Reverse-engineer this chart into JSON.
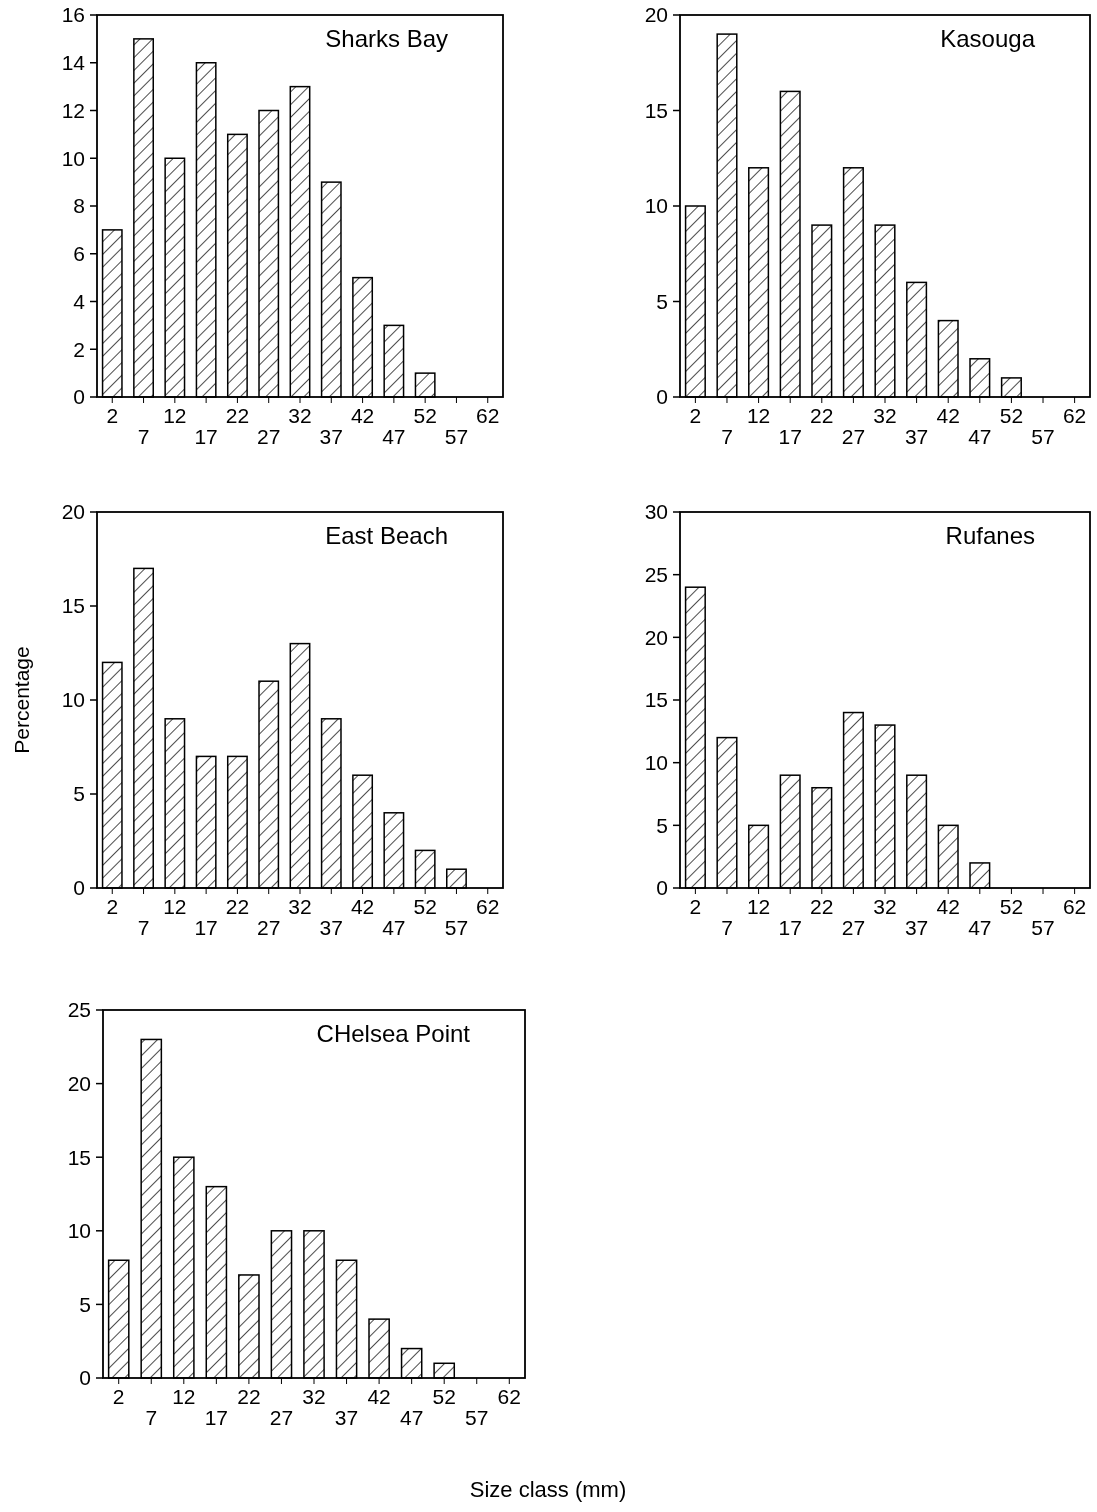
{
  "chart_data": [
    {
      "type": "bar",
      "title": "Sharks Bay",
      "categories": [
        "2",
        "7",
        "12",
        "17",
        "22",
        "27",
        "32",
        "37",
        "42",
        "47",
        "52",
        "57",
        "62"
      ],
      "values": [
        7,
        15,
        10,
        14,
        11,
        12,
        13,
        9,
        5,
        3,
        1,
        0,
        0
      ],
      "color": "#000000",
      "ylim": [
        0,
        16
      ],
      "yticks": [
        0,
        2,
        4,
        6,
        8,
        10,
        12,
        14,
        16
      ]
    },
    {
      "type": "bar",
      "title": "Kasouga",
      "categories": [
        "2",
        "7",
        "12",
        "17",
        "22",
        "27",
        "32",
        "37",
        "42",
        "47",
        "52",
        "57",
        "62"
      ],
      "values": [
        10,
        19,
        12,
        16,
        9,
        12,
        9,
        6,
        4,
        2,
        1,
        0,
        0
      ],
      "color": "#000000",
      "ylim": [
        0,
        20
      ],
      "yticks": [
        0,
        5,
        10,
        15,
        20
      ]
    },
    {
      "type": "bar",
      "title": "East Beach",
      "ylabel": "Percentage",
      "categories": [
        "2",
        "7",
        "12",
        "17",
        "22",
        "27",
        "32",
        "37",
        "42",
        "47",
        "52",
        "57",
        "62"
      ],
      "values": [
        12,
        17,
        9,
        7,
        7,
        11,
        13,
        9,
        6,
        4,
        2,
        1,
        0
      ],
      "color": "#000000",
      "ylim": [
        0,
        20
      ],
      "yticks": [
        0,
        5,
        10,
        15,
        20
      ]
    },
    {
      "type": "bar",
      "title": "Rufanes",
      "categories": [
        "2",
        "7",
        "12",
        "17",
        "22",
        "27",
        "32",
        "37",
        "42",
        "47",
        "52",
        "57",
        "62"
      ],
      "values": [
        24,
        12,
        5,
        9,
        8,
        14,
        13,
        9,
        5,
        2,
        0,
        0,
        0
      ],
      "color": "#000000",
      "ylim": [
        0,
        30
      ],
      "yticks": [
        0,
        5,
        10,
        15,
        20,
        25,
        30
      ]
    },
    {
      "type": "bar",
      "title": "CHelsea Point",
      "xlabel": "Size class (mm)",
      "categories": [
        "2",
        "7",
        "12",
        "17",
        "22",
        "27",
        "32",
        "37",
        "42",
        "47",
        "52",
        "57",
        "62"
      ],
      "values": [
        8,
        23,
        15,
        13,
        7,
        10,
        10,
        8,
        4,
        2,
        1,
        0,
        0
      ],
      "color": "#000000",
      "ylim": [
        0,
        25
      ],
      "yticks": [
        0,
        5,
        10,
        15,
        20,
        25
      ]
    }
  ]
}
